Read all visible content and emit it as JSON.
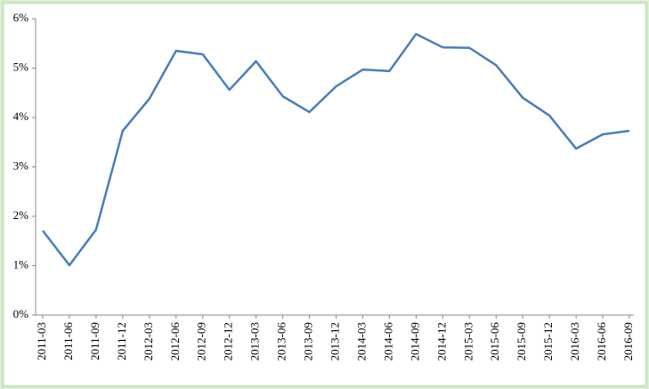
{
  "chart_data": {
    "type": "line",
    "categories": [
      "2011-03",
      "2011-06",
      "2011-09",
      "2011-12",
      "2012-03",
      "2012-06",
      "2012-09",
      "2012-12",
      "2013-03",
      "2013-06",
      "2013-09",
      "2013-12",
      "2014-03",
      "2014-06",
      "2014-09",
      "2014-12",
      "2015-03",
      "2015-06",
      "2015-09",
      "2015-12",
      "2016-03",
      "2016-06",
      "2016-09"
    ],
    "series": [
      {
        "color": "#4a7ebb",
        "values": [
          1.71,
          1.01,
          1.73,
          3.73,
          4.38,
          5.35,
          5.28,
          4.56,
          5.14,
          4.43,
          4.11,
          4.63,
          4.97,
          4.94,
          5.69,
          5.42,
          5.41,
          5.06,
          4.4,
          4.04,
          3.37,
          3.66,
          3.73
        ]
      }
    ],
    "ylim": [
      0,
      6
    ],
    "yticks": [
      {
        "value": 0,
        "label": "0%"
      },
      {
        "value": 1,
        "label": "1%"
      },
      {
        "value": 2,
        "label": "2%"
      },
      {
        "value": 3,
        "label": "3%"
      },
      {
        "value": 4,
        "label": "4%"
      },
      {
        "value": 5,
        "label": "5%"
      },
      {
        "value": 6,
        "label": "6%"
      }
    ],
    "grid": false
  }
}
